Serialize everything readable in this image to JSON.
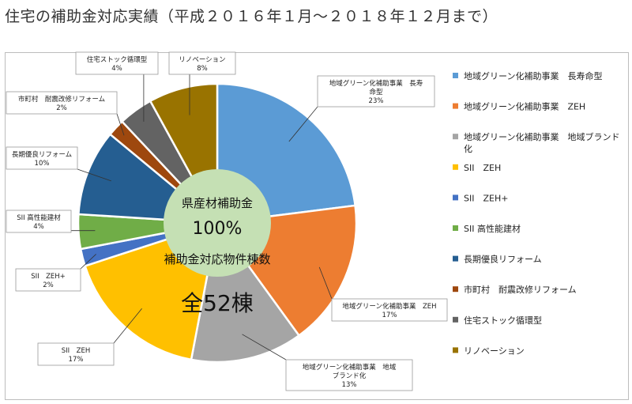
{
  "page": {
    "title": "住宅の補助金対応実績（平成２０１６年１月〜２０１８年１２月まで）"
  },
  "center": {
    "label": "県産材補助金",
    "percent": "100%",
    "caption": "補助金対応物件棟数",
    "total": "全52棟"
  },
  "colors": {
    "center_circle": "#c5e0b4",
    "background": "#ffffff"
  },
  "chart_data": {
    "type": "pie",
    "title": "",
    "legend_position": "right",
    "slices": [
      {
        "label": "地域グリーン化補助事業　長寿命型",
        "callout": [
          "地域グリーン化補助事業　長寿",
          "命型"
        ],
        "value": 23,
        "pct_label": "23%",
        "color": "#5b9bd5"
      },
      {
        "label": "地域グリーン化補助事業　ZEH",
        "callout": [
          "地域グリーン化補助事業　ZEH"
        ],
        "value": 17,
        "pct_label": "17%",
        "color": "#ed7d31"
      },
      {
        "label": "地域グリーン化補助事業　地域ブランド化",
        "callout": [
          "地域グリーン化補助事業　地域",
          "ブランド化"
        ],
        "value": 13,
        "pct_label": "13%",
        "color": "#a5a5a5"
      },
      {
        "label": "SII　ZEH",
        "callout": [
          "SII　ZEH"
        ],
        "value": 17,
        "pct_label": "17%",
        "color": "#ffc000"
      },
      {
        "label": "SII　ZEH+",
        "callout": [
          "SII　ZEH+"
        ],
        "value": 2,
        "pct_label": "2%",
        "color": "#4472c4"
      },
      {
        "label": "SII 高性能建材",
        "callout": [
          "SII 高性能建材"
        ],
        "value": 4,
        "pct_label": "4%",
        "color": "#70ad47"
      },
      {
        "label": "長期優良リフォーム",
        "callout": [
          "長期優良リフォーム"
        ],
        "value": 10,
        "pct_label": "10%",
        "color": "#255e91"
      },
      {
        "label": "市町村　耐震改修リフォーム",
        "callout": [
          "市町村　耐震改修リフォーム"
        ],
        "value": 2,
        "pct_label": "2%",
        "color": "#9e480e"
      },
      {
        "label": "住宅ストック循環型",
        "callout": [
          "住宅ストック循環型"
        ],
        "value": 4,
        "pct_label": "4%",
        "color": "#636363"
      },
      {
        "label": "リノベーション",
        "callout": [
          "リノベーション"
        ],
        "value": 8,
        "pct_label": "8%",
        "color": "#997300"
      }
    ],
    "legend": [
      {
        "label": "地域グリーン化補助事業　長寿命型",
        "color": "#5b9bd5"
      },
      {
        "label": "地域グリーン化補助事業　ZEH",
        "color": "#ed7d31"
      },
      {
        "label": "地域グリーン化補助事業　地域ブランド化",
        "color": "#a5a5a5"
      },
      {
        "label": "SII　ZEH",
        "color": "#ffc000"
      },
      {
        "label": "SII　ZEH+",
        "color": "#4472c4"
      },
      {
        "label": "SII 高性能建材",
        "color": "#70ad47"
      },
      {
        "label": "長期優良リフォーム",
        "color": "#255e91"
      },
      {
        "label": "市町村　耐震改修リフォーム",
        "color": "#9e480e"
      },
      {
        "label": "住宅ストック循環型",
        "color": "#636363"
      },
      {
        "label": "リノベーション",
        "color": "#997300"
      }
    ]
  }
}
